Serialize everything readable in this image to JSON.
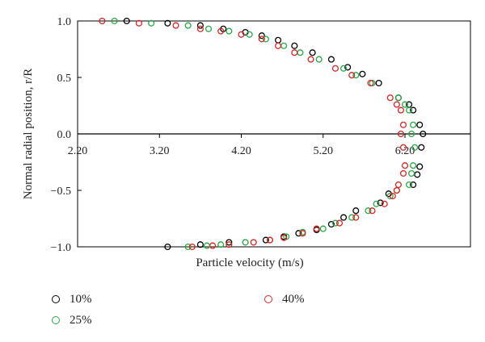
{
  "chart_data": {
    "type": "scatter",
    "title": "",
    "xlabel": "Particle velocity (m/s)",
    "ylabel": "Normal radial position, r/R",
    "xlim": [
      2.2,
      7.0
    ],
    "ylim": [
      -1.0,
      1.0
    ],
    "xticks": [
      2.2,
      3.2,
      4.2,
      5.2,
      6.2
    ],
    "xtick_labels": [
      "2.20",
      "3.20",
      "4.20",
      "5.20",
      "6.20"
    ],
    "yticks": [
      1.0,
      0.5,
      0.0,
      -0.5,
      -1.0
    ],
    "ytick_labels": [
      "1.0",
      "0.5",
      "0.0",
      "−0.5",
      "−1.0"
    ],
    "grid": false,
    "legend_position": "bottom-left",
    "series": [
      {
        "name": "10%",
        "color": "#000000",
        "points": [
          [
            2.8,
            1.0
          ],
          [
            3.3,
            0.98
          ],
          [
            3.7,
            0.96
          ],
          [
            3.98,
            0.93
          ],
          [
            4.25,
            0.9
          ],
          [
            4.45,
            0.87
          ],
          [
            4.65,
            0.83
          ],
          [
            4.85,
            0.78
          ],
          [
            5.07,
            0.72
          ],
          [
            5.3,
            0.66
          ],
          [
            5.5,
            0.59
          ],
          [
            5.68,
            0.53
          ],
          [
            5.88,
            0.45
          ],
          [
            6.12,
            0.32
          ],
          [
            6.25,
            0.26
          ],
          [
            6.3,
            0.21
          ],
          [
            6.38,
            0.08
          ],
          [
            6.42,
            0.0
          ],
          [
            6.4,
            -0.12
          ],
          [
            6.38,
            -0.29
          ],
          [
            6.35,
            -0.36
          ],
          [
            6.3,
            -0.45
          ],
          [
            6.0,
            -0.53
          ],
          [
            5.9,
            -0.61
          ],
          [
            5.6,
            -0.68
          ],
          [
            5.45,
            -0.74
          ],
          [
            5.3,
            -0.8
          ],
          [
            5.12,
            -0.85
          ],
          [
            4.9,
            -0.88
          ],
          [
            4.72,
            -0.91
          ],
          [
            4.5,
            -0.94
          ],
          [
            4.05,
            -0.96
          ],
          [
            3.7,
            -0.98
          ],
          [
            3.3,
            -1.0
          ]
        ]
      },
      {
        "name": "25%",
        "color": "#22aa44",
        "points": [
          [
            2.65,
            1.0
          ],
          [
            3.1,
            0.98
          ],
          [
            3.55,
            0.96
          ],
          [
            3.8,
            0.93
          ],
          [
            4.05,
            0.91
          ],
          [
            4.3,
            0.88
          ],
          [
            4.5,
            0.84
          ],
          [
            4.72,
            0.78
          ],
          [
            4.92,
            0.72
          ],
          [
            5.15,
            0.66
          ],
          [
            5.45,
            0.58
          ],
          [
            5.6,
            0.52
          ],
          [
            5.8,
            0.45
          ],
          [
            6.12,
            0.32
          ],
          [
            6.2,
            0.26
          ],
          [
            6.25,
            0.21
          ],
          [
            6.3,
            0.08
          ],
          [
            6.28,
            0.0
          ],
          [
            6.32,
            -0.12
          ],
          [
            6.3,
            -0.28
          ],
          [
            6.28,
            -0.35
          ],
          [
            6.25,
            -0.45
          ],
          [
            6.1,
            -0.5
          ],
          [
            6.02,
            -0.55
          ],
          [
            5.85,
            -0.62
          ],
          [
            5.75,
            -0.68
          ],
          [
            5.55,
            -0.74
          ],
          [
            5.35,
            -0.79
          ],
          [
            5.2,
            -0.84
          ],
          [
            4.95,
            -0.87
          ],
          [
            4.75,
            -0.91
          ],
          [
            4.55,
            -0.94
          ],
          [
            4.25,
            -0.96
          ],
          [
            3.95,
            -0.98
          ],
          [
            3.78,
            -0.99
          ],
          [
            3.55,
            -1.0
          ]
        ]
      },
      {
        "name": "40%",
        "color": "#dd2222",
        "points": [
          [
            2.5,
            1.0
          ],
          [
            2.95,
            0.98
          ],
          [
            3.4,
            0.96
          ],
          [
            3.7,
            0.93
          ],
          [
            3.95,
            0.91
          ],
          [
            4.2,
            0.88
          ],
          [
            4.45,
            0.84
          ],
          [
            4.65,
            0.78
          ],
          [
            4.85,
            0.72
          ],
          [
            5.05,
            0.66
          ],
          [
            5.35,
            0.58
          ],
          [
            5.55,
            0.52
          ],
          [
            5.78,
            0.45
          ],
          [
            6.02,
            0.32
          ],
          [
            6.1,
            0.26
          ],
          [
            6.15,
            0.21
          ],
          [
            6.18,
            0.08
          ],
          [
            6.15,
            0.0
          ],
          [
            6.18,
            -0.12
          ],
          [
            6.2,
            -0.28
          ],
          [
            6.18,
            -0.35
          ],
          [
            6.12,
            -0.45
          ],
          [
            6.1,
            -0.5
          ],
          [
            6.05,
            -0.55
          ],
          [
            5.95,
            -0.62
          ],
          [
            5.8,
            -0.68
          ],
          [
            5.6,
            -0.74
          ],
          [
            5.4,
            -0.79
          ],
          [
            5.12,
            -0.84
          ],
          [
            4.95,
            -0.88
          ],
          [
            4.72,
            -0.92
          ],
          [
            4.55,
            -0.94
          ],
          [
            4.35,
            -0.96
          ],
          [
            4.05,
            -0.98
          ],
          [
            3.85,
            -0.99
          ],
          [
            3.6,
            -1.0
          ]
        ]
      }
    ]
  }
}
